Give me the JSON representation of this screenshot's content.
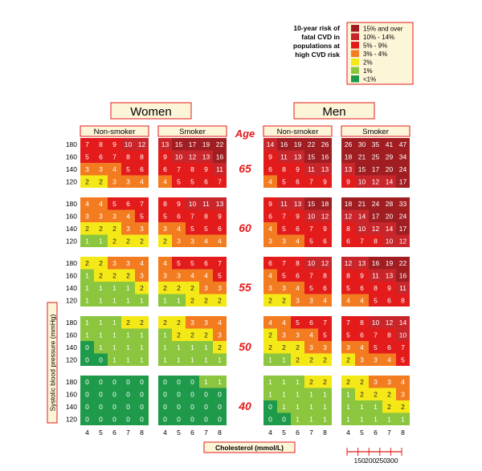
{
  "legend": {
    "title_lines": [
      "10-year risk of",
      "fatal CVD in",
      "populations at",
      "high CVD risk"
    ],
    "items": [
      {
        "label": "15% and over",
        "color": "#a01e22"
      },
      {
        "label": "10% - 14%",
        "color": "#c8262b"
      },
      {
        "label": "5% - 9%",
        "color": "#e31b1b"
      },
      {
        "label": "3% - 4%",
        "color": "#f47c20"
      },
      {
        "label": "2%",
        "color": "#f5e817"
      },
      {
        "label": "1%",
        "color": "#8cc63f"
      },
      {
        "label": "<1%",
        "color": "#1e9a4a"
      }
    ]
  },
  "headers": {
    "women": "Women",
    "men": "Men",
    "age": "Age",
    "non_smoker": "Non-smoker",
    "smoker": "Smoker"
  },
  "axes": {
    "ylabel": "Systolic blood pressure (mmHg)",
    "xlabel": "Cholesterol (mmol/L)",
    "sbp_ticks": [
      "180",
      "160",
      "140",
      "120"
    ],
    "chol_ticks": [
      "4",
      "5",
      "6",
      "7",
      "8"
    ],
    "mgdl_ticks": [
      "150",
      "200",
      "250",
      "300"
    ]
  },
  "chart_data": {
    "type": "heatmap",
    "title": "10-year risk of fatal CVD in populations at high CVD risk",
    "ylabel": "Systolic blood pressure (mmHg)",
    "xlabel": "Cholesterol (mmol/L)",
    "rows_sbp": [
      180,
      160,
      140,
      120
    ],
    "cols_cholesterol": [
      4,
      5,
      6,
      7,
      8
    ],
    "ages": [
      65,
      60,
      55,
      50,
      40
    ],
    "panels": [
      "Women Non-smoker",
      "Women Smoker",
      "Men Non-smoker",
      "Men Smoker"
    ],
    "values": {
      "65": [
        [
          [
            7,
            8,
            9,
            10,
            12
          ],
          [
            5,
            6,
            7,
            8,
            8
          ],
          [
            3,
            3,
            4,
            5,
            6
          ],
          [
            2,
            2,
            3,
            3,
            4
          ]
        ],
        [
          [
            13,
            15,
            17,
            19,
            22
          ],
          [
            9,
            10,
            12,
            13,
            16
          ],
          [
            6,
            7,
            8,
            9,
            11
          ],
          [
            4,
            5,
            5,
            6,
            7
          ]
        ],
        [
          [
            14,
            16,
            19,
            22,
            26
          ],
          [
            9,
            11,
            13,
            15,
            16
          ],
          [
            6,
            8,
            9,
            11,
            13
          ],
          [
            4,
            5,
            6,
            7,
            9
          ]
        ],
        [
          [
            26,
            30,
            35,
            41,
            47
          ],
          [
            18,
            21,
            25,
            29,
            34
          ],
          [
            13,
            15,
            17,
            20,
            24
          ],
          [
            9,
            10,
            12,
            14,
            17
          ]
        ]
      ],
      "60": [
        [
          [
            4,
            4,
            5,
            6,
            7
          ],
          [
            3,
            3,
            3,
            4,
            5
          ],
          [
            2,
            2,
            2,
            3,
            3
          ],
          [
            1,
            1,
            2,
            2,
            2
          ]
        ],
        [
          [
            8,
            9,
            10,
            11,
            13
          ],
          [
            5,
            6,
            7,
            8,
            9
          ],
          [
            3,
            4,
            5,
            5,
            6
          ],
          [
            2,
            3,
            3,
            4,
            4
          ]
        ],
        [
          [
            9,
            11,
            13,
            15,
            18
          ],
          [
            6,
            7,
            9,
            10,
            12
          ],
          [
            4,
            5,
            6,
            7,
            9
          ],
          [
            3,
            3,
            4,
            5,
            6
          ]
        ],
        [
          [
            18,
            21,
            24,
            28,
            33
          ],
          [
            12,
            14,
            17,
            20,
            24
          ],
          [
            8,
            10,
            12,
            14,
            17
          ],
          [
            6,
            7,
            8,
            10,
            12
          ]
        ]
      ],
      "55": [
        [
          [
            2,
            2,
            3,
            3,
            4
          ],
          [
            1,
            2,
            2,
            2,
            3
          ],
          [
            1,
            1,
            1,
            1,
            2
          ],
          [
            1,
            1,
            1,
            1,
            1
          ]
        ],
        [
          [
            4,
            5,
            5,
            6,
            7
          ],
          [
            3,
            3,
            4,
            4,
            5
          ],
          [
            2,
            2,
            2,
            3,
            3
          ],
          [
            1,
            1,
            2,
            2,
            2
          ]
        ],
        [
          [
            6,
            7,
            8,
            10,
            12
          ],
          [
            4,
            5,
            6,
            7,
            8
          ],
          [
            3,
            3,
            4,
            5,
            6
          ],
          [
            2,
            2,
            3,
            3,
            4
          ]
        ],
        [
          [
            12,
            13,
            16,
            19,
            22
          ],
          [
            8,
            9,
            11,
            13,
            16
          ],
          [
            5,
            6,
            8,
            9,
            11
          ],
          [
            4,
            4,
            5,
            6,
            8
          ]
        ]
      ],
      "50": [
        [
          [
            1,
            1,
            1,
            2,
            2
          ],
          [
            1,
            1,
            1,
            1,
            1
          ],
          [
            0,
            1,
            1,
            1,
            1
          ],
          [
            0,
            0,
            1,
            1,
            1
          ]
        ],
        [
          [
            2,
            2,
            3,
            3,
            4
          ],
          [
            1,
            2,
            2,
            2,
            3
          ],
          [
            1,
            1,
            1,
            1,
            2
          ],
          [
            1,
            1,
            1,
            1,
            1
          ]
        ],
        [
          [
            4,
            4,
            5,
            6,
            7
          ],
          [
            2,
            3,
            3,
            4,
            5
          ],
          [
            2,
            2,
            2,
            3,
            3
          ],
          [
            1,
            1,
            2,
            2,
            2
          ]
        ],
        [
          [
            7,
            8,
            10,
            12,
            14
          ],
          [
            5,
            6,
            7,
            8,
            10
          ],
          [
            3,
            4,
            5,
            6,
            7
          ],
          [
            2,
            3,
            3,
            4,
            5
          ]
        ]
      ],
      "40": [
        [
          [
            0,
            0,
            0,
            0,
            0
          ],
          [
            0,
            0,
            0,
            0,
            0
          ],
          [
            0,
            0,
            0,
            0,
            0
          ],
          [
            0,
            0,
            0,
            0,
            0
          ]
        ],
        [
          [
            0,
            0,
            0,
            1,
            1
          ],
          [
            0,
            0,
            0,
            0,
            0
          ],
          [
            0,
            0,
            0,
            0,
            0
          ],
          [
            0,
            0,
            0,
            0,
            0
          ]
        ],
        [
          [
            1,
            1,
            1,
            2,
            2
          ],
          [
            1,
            1,
            1,
            1,
            1
          ],
          [
            0,
            1,
            1,
            1,
            1
          ],
          [
            0,
            0,
            1,
            1,
            1
          ]
        ],
        [
          [
            2,
            2,
            3,
            3,
            4
          ],
          [
            1,
            2,
            2,
            2,
            3
          ],
          [
            1,
            1,
            1,
            2,
            2
          ],
          [
            1,
            1,
            1,
            1,
            1
          ]
        ]
      ]
    }
  }
}
